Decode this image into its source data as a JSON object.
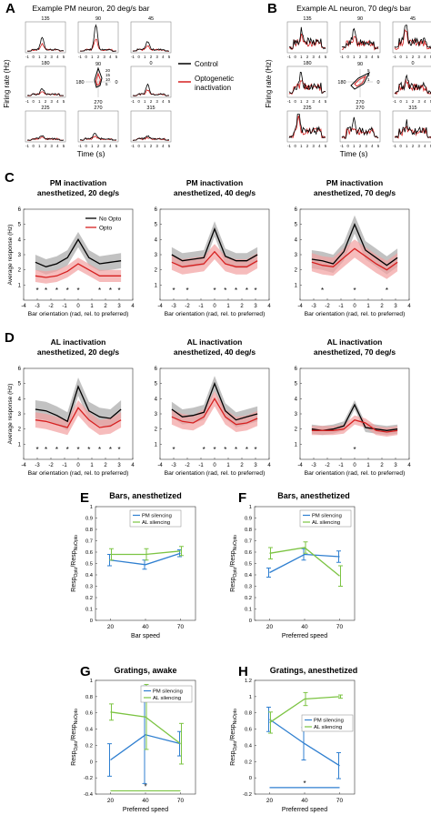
{
  "colors": {
    "black": "#000000",
    "red": "#d62020",
    "red_band": "#f2a0a0",
    "gray_band": "#a8a8a8",
    "blue": "#2f7fd0",
    "green": "#7cc443"
  },
  "panel_a": {
    "letter": "A",
    "title": "Example PM neuron, 20 deg/s bar",
    "ylabel": "Firing rate (Hz)",
    "xlabel": "Time (s)",
    "tick_labels": [
      "-1",
      "0",
      "1",
      "2",
      "3",
      "4",
      "5"
    ],
    "directions": [
      "135",
      "90",
      "45",
      "180",
      "",
      "0",
      "225",
      "270",
      "315"
    ],
    "polar": {
      "top": "90",
      "left": "180",
      "right": "0",
      "bottom": "270",
      "rings": [
        "20",
        "15",
        "10",
        "5"
      ]
    },
    "legend": {
      "control": "Control",
      "opto": "Optogenetic inactivation"
    }
  },
  "panel_b": {
    "letter": "B",
    "title": "Example AL neuron, 70 deg/s bar",
    "ylabel": "Firing rate (Hz)",
    "xlabel": "Time (s)",
    "tick_labels": [
      "-1",
      "0",
      "1",
      "2",
      "3",
      "4",
      "5"
    ],
    "directions": [
      "135",
      "90",
      "45",
      "180",
      "",
      "0",
      "225",
      "270",
      "315"
    ],
    "polar": {
      "top": "90",
      "left": "180",
      "right": "0",
      "bottom": "270",
      "rings": [
        "5",
        "3",
        "1"
      ]
    }
  },
  "row_c": {
    "letter": "C"
  },
  "row_d": {
    "letter": "D"
  },
  "tuning_common": {
    "xlabel": "Bar orientation (rad, rel. to preferred)",
    "ylabel": "Average response (Hz)",
    "xticks": [
      "-4",
      "-3",
      "-2",
      "-1",
      "0",
      "1",
      "2",
      "3",
      "4"
    ],
    "yticks": [
      "1",
      "2",
      "3",
      "4",
      "5",
      "6"
    ],
    "legend_no_opto": "No Opto",
    "legend_opto": "Opto",
    "star": "*"
  },
  "panel_e": {
    "letter": "E",
    "title": "Bars, anesthetized",
    "xlabel": "Bar speed"
  },
  "panel_f": {
    "letter": "F",
    "title": "Bars, anesthetized",
    "xlabel": "Preferred speed"
  },
  "panel_g": {
    "letter": "G",
    "title": "Gratings, awake",
    "xlabel": "Preferred speed"
  },
  "panel_h": {
    "letter": "H",
    "title": "Gratings, anesthetized",
    "xlabel": "Preferred speed"
  },
  "ratio_common": {
    "ylabel": "Resp",
    "ylabel_sub1": "Opto",
    "ylabel_mid": "/Resp",
    "ylabel_sub2": "NoOpto",
    "legend_pm": "PM silencing",
    "legend_al": "AL silencing",
    "star": "*"
  },
  "chart_data": [
    {
      "id": "C1",
      "type": "line",
      "title": [
        "PM inactivation",
        "anesthetized, 20 deg/s"
      ],
      "x": [
        -3.14,
        -2.36,
        -1.57,
        -0.79,
        0,
        0.79,
        1.57,
        2.36,
        3.14
      ],
      "xlim": [
        -4,
        4
      ],
      "ylim": [
        0,
        6
      ],
      "legend": "top-right",
      "grid": false,
      "series": [
        {
          "name": "No Opto",
          "values": [
            2.5,
            2.2,
            2.4,
            2.8,
            4.0,
            2.8,
            2.4,
            2.5,
            2.6
          ],
          "band": 0.5
        },
        {
          "name": "Opto",
          "values": [
            1.6,
            1.5,
            1.6,
            1.9,
            2.4,
            2.0,
            1.6,
            1.6,
            1.6
          ],
          "band": 0.4
        }
      ],
      "stars": [
        -3,
        -2.36,
        -1.57,
        -0.79,
        0,
        1.57,
        2.36,
        3
      ]
    },
    {
      "id": "C2",
      "type": "line",
      "title": [
        "PM inactivation",
        "anesthetized, 40 deg/s"
      ],
      "x": [
        -3.14,
        -2.36,
        -1.57,
        -0.79,
        0,
        0.79,
        1.57,
        2.36,
        3.14
      ],
      "xlim": [
        -4,
        4
      ],
      "ylim": [
        0,
        6
      ],
      "legend": "none",
      "grid": false,
      "series": [
        {
          "name": "No Opto",
          "values": [
            3.0,
            2.6,
            2.7,
            2.8,
            4.7,
            2.9,
            2.6,
            2.6,
            3.0
          ],
          "band": 0.5
        },
        {
          "name": "Opto",
          "values": [
            2.5,
            2.2,
            2.3,
            2.4,
            3.2,
            2.4,
            2.2,
            2.2,
            2.6
          ],
          "band": 0.5
        }
      ],
      "stars": [
        -3,
        -2,
        0,
        0.79,
        1.57,
        2.36,
        3
      ]
    },
    {
      "id": "C3",
      "type": "line",
      "title": [
        "PM inactivation",
        "anesthetized, 70 deg/s"
      ],
      "x": [
        -3.14,
        -2.36,
        -1.57,
        -0.79,
        0,
        0.79,
        1.57,
        2.36,
        3.14
      ],
      "xlim": [
        -4,
        4
      ],
      "ylim": [
        0,
        6
      ],
      "legend": "none",
      "grid": false,
      "series": [
        {
          "name": "No Opto",
          "values": [
            2.7,
            2.6,
            2.4,
            3.2,
            5.0,
            3.3,
            2.8,
            2.3,
            2.8
          ],
          "band": 0.6
        },
        {
          "name": "Opto",
          "values": [
            2.5,
            2.3,
            2.2,
            2.8,
            3.4,
            2.9,
            2.4,
            2.0,
            2.5
          ],
          "band": 0.6
        }
      ],
      "stars": [
        -2.36,
        0,
        2.36
      ]
    },
    {
      "id": "D1",
      "type": "line",
      "title": [
        "AL inactivation",
        "anesthetized, 20 deg/s"
      ],
      "x": [
        -3.14,
        -2.36,
        -1.57,
        -0.79,
        0,
        0.79,
        1.57,
        2.36,
        3.14
      ],
      "xlim": [
        -4,
        4
      ],
      "ylim": [
        0,
        6
      ],
      "legend": "none",
      "grid": false,
      "series": [
        {
          "name": "No Opto",
          "values": [
            3.3,
            3.2,
            2.9,
            2.5,
            4.8,
            3.2,
            2.8,
            2.7,
            3.3
          ],
          "band": 0.6
        },
        {
          "name": "Opto",
          "values": [
            2.6,
            2.5,
            2.3,
            2.1,
            3.4,
            2.6,
            2.1,
            2.2,
            2.6
          ],
          "band": 0.5
        }
      ],
      "stars": [
        -3,
        -2.36,
        -1.57,
        -0.79,
        0,
        0.79,
        1.57,
        2.36,
        3
      ]
    },
    {
      "id": "D2",
      "type": "line",
      "title": [
        "AL inactivation",
        "anesthetized, 40 deg/s"
      ],
      "x": [
        -3.14,
        -2.36,
        -1.57,
        -0.79,
        0,
        0.79,
        1.57,
        2.36,
        3.14
      ],
      "xlim": [
        -4,
        4
      ],
      "ylim": [
        0,
        6
      ],
      "legend": "none",
      "grid": false,
      "series": [
        {
          "name": "No Opto",
          "values": [
            3.3,
            2.8,
            2.9,
            3.1,
            5.0,
            3.2,
            2.6,
            2.8,
            3.0
          ],
          "band": 0.5
        },
        {
          "name": "Opto",
          "values": [
            2.8,
            2.5,
            2.4,
            2.8,
            4.0,
            2.8,
            2.3,
            2.4,
            2.7
          ],
          "band": 0.5
        }
      ],
      "stars": [
        -3,
        -0.79,
        0,
        0.79,
        1.57,
        2.36,
        3
      ]
    },
    {
      "id": "D3",
      "type": "line",
      "title": [
        "AL inactivation",
        "anesthetized, 70 deg/s"
      ],
      "x": [
        -3.14,
        -2.36,
        -1.57,
        -0.79,
        0,
        0.79,
        1.57,
        2.36,
        3.14
      ],
      "xlim": [
        -4,
        4
      ],
      "ylim": [
        0,
        6
      ],
      "legend": "none",
      "grid": false,
      "series": [
        {
          "name": "No Opto",
          "values": [
            2.0,
            1.9,
            2.0,
            2.2,
            3.6,
            2.1,
            2.0,
            1.9,
            2.0
          ],
          "band": 0.3
        },
        {
          "name": "Opto",
          "values": [
            1.9,
            1.9,
            1.9,
            2.0,
            2.6,
            2.4,
            1.9,
            1.8,
            1.9
          ],
          "band": 0.3
        }
      ],
      "stars": [
        0
      ]
    },
    {
      "id": "E",
      "type": "line",
      "title": "Bars, anesthetized",
      "xlabel": "Bar speed",
      "ylabel": "Resp_Opto/Resp_NoOpto",
      "xticks": [
        20,
        40,
        70
      ],
      "ylim": [
        0,
        1
      ],
      "yticks": [
        0,
        0.1,
        0.2,
        0.3,
        0.4,
        0.5,
        0.6,
        0.7,
        0.8,
        0.9,
        1
      ],
      "legend": "top",
      "grid": false,
      "series": [
        {
          "name": "PM silencing",
          "x": [
            20,
            40,
            70
          ],
          "values": [
            0.53,
            0.49,
            0.59
          ],
          "err": [
            0.05,
            0.04,
            0.03
          ]
        },
        {
          "name": "AL silencing",
          "x": [
            20,
            40,
            70
          ],
          "values": [
            0.58,
            0.58,
            0.61
          ],
          "err": [
            0.05,
            0.05,
            0.04
          ]
        }
      ]
    },
    {
      "id": "F",
      "type": "line",
      "title": "Bars, anesthetized",
      "xlabel": "Preferred speed",
      "ylabel": "Resp_Opto/Resp_NoOpto",
      "xticks": [
        20,
        40,
        70
      ],
      "ylim": [
        0,
        1
      ],
      "yticks": [
        0,
        0.1,
        0.2,
        0.3,
        0.4,
        0.5,
        0.6,
        0.7,
        0.8,
        0.9,
        1
      ],
      "legend": "top-right",
      "grid": false,
      "series": [
        {
          "name": "PM silencing",
          "x": [
            20,
            40,
            70
          ],
          "values": [
            0.42,
            0.58,
            0.56
          ],
          "err": [
            0.04,
            0.05,
            0.05
          ]
        },
        {
          "name": "AL silencing",
          "x": [
            20,
            40,
            70
          ],
          "values": [
            0.59,
            0.64,
            0.39
          ],
          "err": [
            0.05,
            0.05,
            0.09
          ]
        }
      ]
    },
    {
      "id": "G",
      "type": "line",
      "title": "Gratings, awake",
      "xlabel": "Preferred speed",
      "ylabel": "Resp_Opto/Resp_NoOpto",
      "xticks": [
        20,
        40,
        70
      ],
      "ylim": [
        -0.4,
        1
      ],
      "yticks": [
        -0.4,
        -0.2,
        0,
        0.2,
        0.4,
        0.6,
        0.8,
        1
      ],
      "legend": "top-right",
      "grid": false,
      "series": [
        {
          "name": "PM silencing",
          "x": [
            20,
            40,
            70
          ],
          "values": [
            0.02,
            0.33,
            0.22
          ],
          "err": [
            0.2,
            0.6,
            0.15
          ]
        },
        {
          "name": "AL silencing",
          "x": [
            20,
            40,
            70
          ],
          "values": [
            0.61,
            0.55,
            0.22
          ],
          "err": [
            0.1,
            0.4,
            0.25
          ]
        }
      ],
      "significance": {
        "y": -0.36,
        "x_from": 20,
        "x_to": 70,
        "star_at": 40
      }
    },
    {
      "id": "H",
      "type": "line",
      "title": "Gratings, anesthetized",
      "xlabel": "Preferred speed",
      "ylabel": "Resp_Opto/Resp_NoOpto",
      "xticks": [
        20,
        40,
        70
      ],
      "ylim": [
        -0.2,
        1.2
      ],
      "yticks": [
        -0.2,
        0,
        0.2,
        0.4,
        0.6,
        0.8,
        1,
        1.2
      ],
      "legend": "right",
      "grid": false,
      "series": [
        {
          "name": "PM silencing",
          "x": [
            20,
            40,
            70
          ],
          "values": [
            0.72,
            0.42,
            0.15
          ],
          "err": [
            0.15,
            0.2,
            0.16
          ]
        },
        {
          "name": "AL silencing",
          "x": [
            20,
            40,
            70
          ],
          "values": [
            0.68,
            0.97,
            1.0
          ],
          "err": [
            0.13,
            0.08,
            0.02
          ]
        }
      ],
      "significance": {
        "y": -0.12,
        "x_from": 20,
        "x_to": 70,
        "star_at": 40
      }
    }
  ]
}
